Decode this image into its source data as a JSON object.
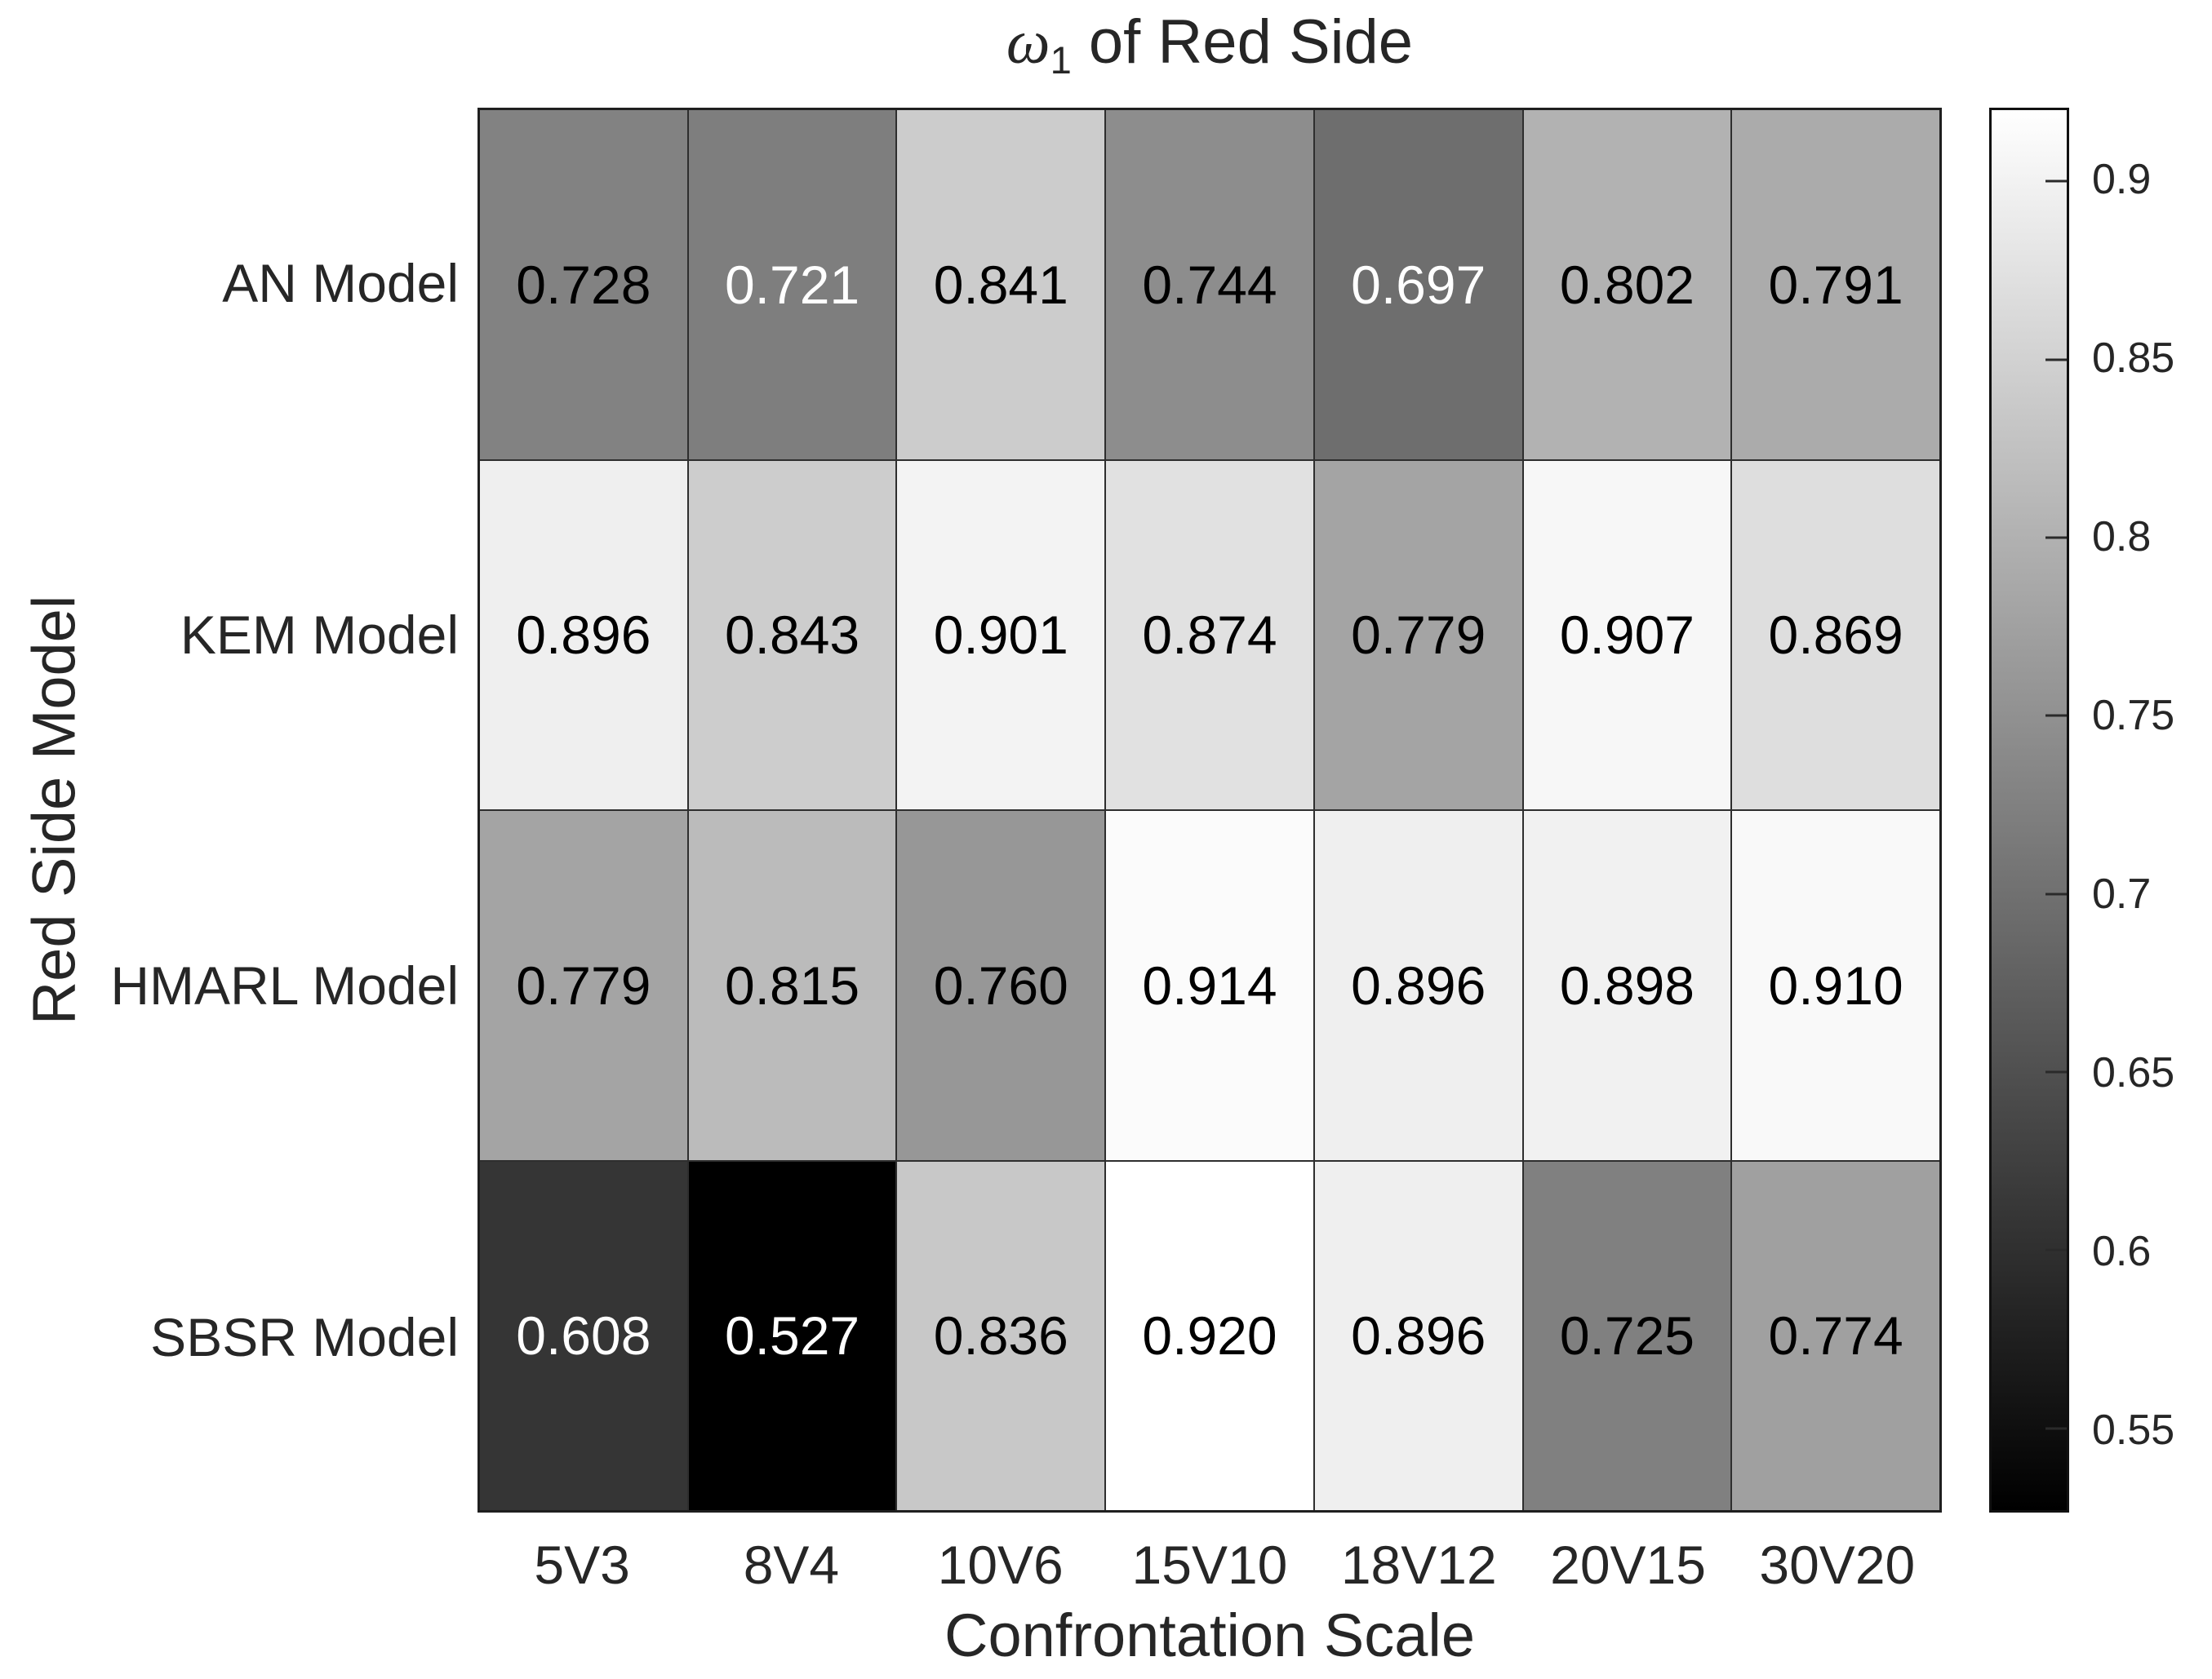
{
  "figure": {
    "title": {
      "symbol": "ω",
      "subscript": "1",
      "rest": " of Red Side"
    },
    "xlabel": "Confrontation Scale",
    "ylabel": "Red Side Model"
  },
  "chart_data": {
    "type": "heatmap",
    "title": "ω_1 of Red Side",
    "xlabel": "Confrontation Scale",
    "ylabel": "Red Side Model",
    "columns": [
      "5V3",
      "8V4",
      "10V6",
      "15V10",
      "18V12",
      "20V15",
      "30V20"
    ],
    "rows": [
      "AN Model",
      "KEM Model",
      "HMARL Model",
      "SBSR Model"
    ],
    "values": [
      [
        0.728,
        0.721,
        0.841,
        0.744,
        0.697,
        0.802,
        0.791
      ],
      [
        0.896,
        0.843,
        0.901,
        0.874,
        0.779,
        0.907,
        0.869
      ],
      [
        0.779,
        0.815,
        0.76,
        0.914,
        0.896,
        0.898,
        0.91
      ],
      [
        0.608,
        0.527,
        0.836,
        0.92,
        0.896,
        0.725,
        0.774
      ]
    ],
    "value_decimals": 3,
    "colormap": "gray",
    "color_limits": [
      0.527,
      0.92
    ],
    "colorbar_position": "right",
    "colorbar_tick_values": [
      0.9,
      0.85,
      0.8,
      0.75,
      0.7,
      0.65,
      0.6,
      0.55
    ],
    "colorbar_tick_labels": [
      "0.9",
      "0.85",
      "0.8",
      "0.75",
      "0.7",
      "0.65",
      "0.6",
      "0.55"
    ],
    "grid": true,
    "cell_text_color_light": "#ffffff",
    "cell_text_color_dark": "#000000",
    "background_color": "#ffffff"
  }
}
